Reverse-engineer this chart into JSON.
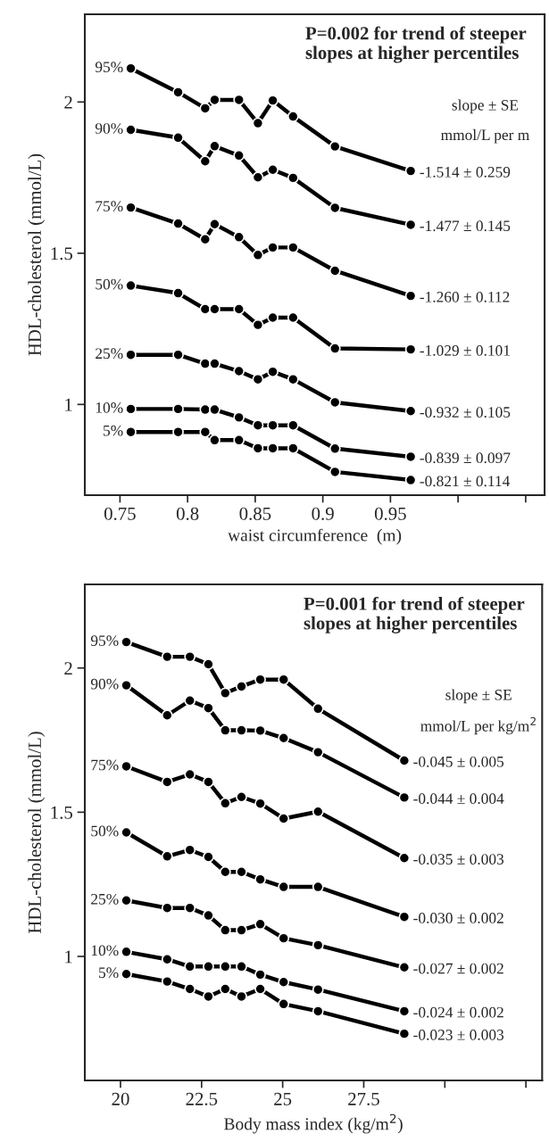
{
  "chart_data": [
    {
      "type": "line",
      "title": "P=0.002 for trend of steeper\nslopes at higher percentiles",
      "xlabel": "waist circumference  (m)",
      "ylabel": "HDL-cholesterol (mmol/L)",
      "x": [
        0.758,
        0.793,
        0.813,
        0.82,
        0.838,
        0.852,
        0.863,
        0.878,
        0.909,
        0.965
      ],
      "xlim": [
        0.724,
        1.064
      ],
      "xticks": [
        0.75,
        0.8,
        0.85,
        0.9,
        0.95,
        {
          "value": 1.0,
          "label": null
        },
        {
          "value": 1.05,
          "label": null
        }
      ],
      "ylim": [
        0.7,
        2.29
      ],
      "yticks": [
        1,
        1.5,
        2
      ],
      "grid": false,
      "legend": false,
      "marker": "circle",
      "line_style": "solid",
      "series": [
        {
          "name": "95%",
          "color": "#000000",
          "values": [
            2.111,
            2.032,
            1.979,
            2.007,
            2.007,
            1.93,
            2.005,
            1.952,
            1.853,
            1.772
          ]
        },
        {
          "name": "90%",
          "color": "#000000",
          "values": [
            1.908,
            1.882,
            1.804,
            1.854,
            1.823,
            1.751,
            1.776,
            1.749,
            1.65,
            1.594
          ]
        },
        {
          "name": "75%",
          "color": "#000000",
          "values": [
            1.651,
            1.598,
            1.546,
            1.596,
            1.553,
            1.494,
            1.519,
            1.519,
            1.442,
            1.359
          ]
        },
        {
          "name": "50%",
          "color": "#000000",
          "values": [
            1.393,
            1.368,
            1.315,
            1.315,
            1.315,
            1.263,
            1.287,
            1.287,
            1.185,
            1.182
          ]
        },
        {
          "name": "25%",
          "color": "#000000",
          "values": [
            1.164,
            1.164,
            1.135,
            1.135,
            1.11,
            1.083,
            1.108,
            1.083,
            1.007,
            0.978
          ]
        },
        {
          "name": "10%",
          "color": "#000000",
          "values": [
            0.985,
            0.985,
            0.983,
            0.983,
            0.957,
            0.931,
            0.931,
            0.931,
            0.854,
            0.827
          ]
        },
        {
          "name": "5%",
          "color": "#000000",
          "values": [
            0.909,
            0.909,
            0.909,
            0.882,
            0.882,
            0.855,
            0.855,
            0.855,
            0.777,
            0.75
          ]
        }
      ],
      "annotations": [
        "slope ± SE",
        "mmol/L per m",
        "-1.514 ± 0.259",
        "-1.477 ± 0.145",
        "-1.260 ± 0.112",
        "-1.029 ± 0.101",
        "-0.932 ± 0.105",
        "-0.839 ± 0.097",
        "-0.821 ± 0.114"
      ]
    },
    {
      "type": "line",
      "title": "P=0.001 for trend of steeper\nslopes at higher percentiles",
      "xlabel": "Body mass index (kg/m$^{2}$)",
      "ylabel": "HDL-cholesterol (mmol/L)",
      "x": [
        20.18,
        21.44,
        22.14,
        22.71,
        23.23,
        23.73,
        24.31,
        25.03,
        26.09,
        28.75
      ],
      "xlim": [
        18.9,
        33.0
      ],
      "xticks": [
        20,
        22.5,
        25,
        27.5,
        {
          "value": 30,
          "label": null
        },
        {
          "value": 32.5,
          "label": null
        }
      ],
      "ylim": [
        0.57,
        2.29
      ],
      "yticks": [
        1,
        1.5,
        2
      ],
      "grid": false,
      "legend": false,
      "marker": "circle",
      "line_style": "solid",
      "series": [
        {
          "name": "95%",
          "color": "#000000",
          "values": [
            2.09,
            2.039,
            2.039,
            2.013,
            1.913,
            1.936,
            1.96,
            1.96,
            1.859,
            1.679
          ]
        },
        {
          "name": "90%",
          "color": "#000000",
          "values": [
            1.94,
            1.836,
            1.887,
            1.861,
            1.784,
            1.784,
            1.783,
            1.757,
            1.708,
            1.551
          ]
        },
        {
          "name": "75%",
          "color": "#000000",
          "values": [
            1.659,
            1.605,
            1.631,
            1.605,
            1.531,
            1.553,
            1.53,
            1.478,
            1.502,
            1.341
          ]
        },
        {
          "name": "50%",
          "color": "#000000",
          "values": [
            1.43,
            1.347,
            1.369,
            1.345,
            1.293,
            1.293,
            1.267,
            1.241,
            1.241,
            1.137
          ]
        },
        {
          "name": "25%",
          "color": "#000000",
          "values": [
            1.194,
            1.168,
            1.168,
            1.142,
            1.091,
            1.091,
            1.112,
            1.063,
            1.039,
            0.962
          ]
        },
        {
          "name": "10%",
          "color": "#000000",
          "values": [
            1.016,
            0.99,
            0.965,
            0.965,
            0.965,
            0.965,
            0.937,
            0.911,
            0.885,
            0.81
          ]
        },
        {
          "name": "5%",
          "color": "#000000",
          "values": [
            0.939,
            0.913,
            0.887,
            0.861,
            0.887,
            0.861,
            0.887,
            0.835,
            0.81,
            0.732
          ]
        }
      ],
      "annotations": [
        "slope ± SE",
        "mmol/L per kg/m$^{2}$",
        "-0.045 ± 0.005",
        "-0.044 ± 0.004",
        "-0.035 ± 0.003",
        "-0.030 ± 0.002",
        "-0.027 ± 0.002",
        "-0.024 ± 0.002",
        "-0.023 ± 0.003"
      ]
    }
  ]
}
